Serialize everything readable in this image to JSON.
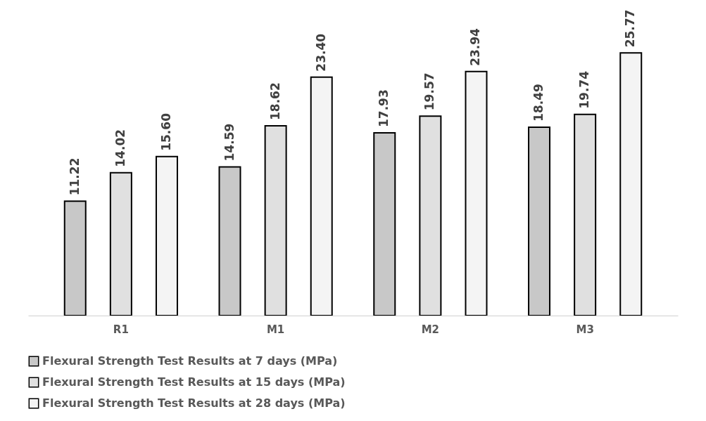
{
  "chart_data": {
    "type": "bar",
    "categories": [
      "R1",
      "M1",
      "M2",
      "M3"
    ],
    "series": [
      {
        "name": "Flexural Strength Test Results  at 7 days (MPa)",
        "color": "#c8c8c8",
        "values": [
          11.22,
          14.59,
          17.93,
          18.49
        ],
        "value_labels": [
          "11.22",
          "14.59",
          "17.93",
          "18.49"
        ]
      },
      {
        "name": "Flexural Strength Test Results at 15 days (MPa)",
        "color": "#e0e0e0",
        "values": [
          14.02,
          18.62,
          19.57,
          19.74
        ],
        "value_labels": [
          "14.02",
          "18.62",
          "19.57",
          "19.74"
        ]
      },
      {
        "name": "Flexural Strength Test Results at 28 days (MPa)",
        "color": "#f4f4f4",
        "values": [
          15.6,
          23.4,
          23.94,
          25.77
        ],
        "value_labels": [
          "15.60",
          "23.40",
          "23.94",
          "25.77"
        ]
      }
    ],
    "tick_labels": "x",
    "legend": "bottom",
    "grid": false
  }
}
